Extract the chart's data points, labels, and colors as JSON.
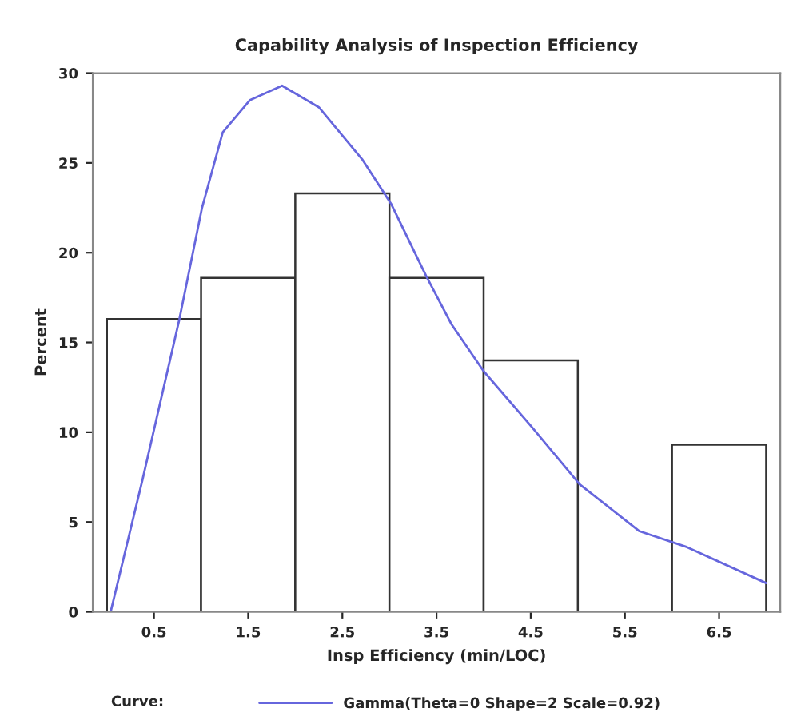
{
  "chart_data": {
    "type": "histogram",
    "title": "Capability Analysis of Inspection Efficiency",
    "xlabel": "Insp Efficiency (min/LOC)",
    "ylabel": "Percent",
    "legend_title": "Curve:",
    "bins": [
      0,
      1,
      2,
      3,
      4,
      5,
      6,
      7
    ],
    "values": [
      16.3,
      18.6,
      23.3,
      18.6,
      14.0,
      0,
      9.3
    ],
    "color": "#ffffff",
    "series": [
      {
        "type": "line",
        "name": "Gamma(Theta=0 Shape=2 Scale=0.92)",
        "color": "#6666dd",
        "x": [
          0.04,
          0.38,
          0.77,
          1.01,
          1.23,
          1.52,
          1.86,
          2.25,
          2.71,
          3.02,
          3.39,
          3.66,
          4.0,
          4.51,
          5.02,
          5.65,
          6.16,
          7.0
        ],
        "values": [
          0,
          7.4,
          16.3,
          22.5,
          26.7,
          28.5,
          29.3,
          28.1,
          25.2,
          22.7,
          18.7,
          16.0,
          13.4,
          10.3,
          7.1,
          4.5,
          3.6,
          1.6
        ]
      }
    ],
    "xlim": [
      -0.15,
      7.15
    ],
    "xticks": [
      0.5,
      1.5,
      2.5,
      3.5,
      4.5,
      5.5,
      6.5
    ],
    "ylim": [
      0,
      30
    ],
    "yticks": [
      0,
      5,
      10,
      15,
      20,
      25,
      30
    ],
    "grid": false,
    "legend": "bottom"
  }
}
